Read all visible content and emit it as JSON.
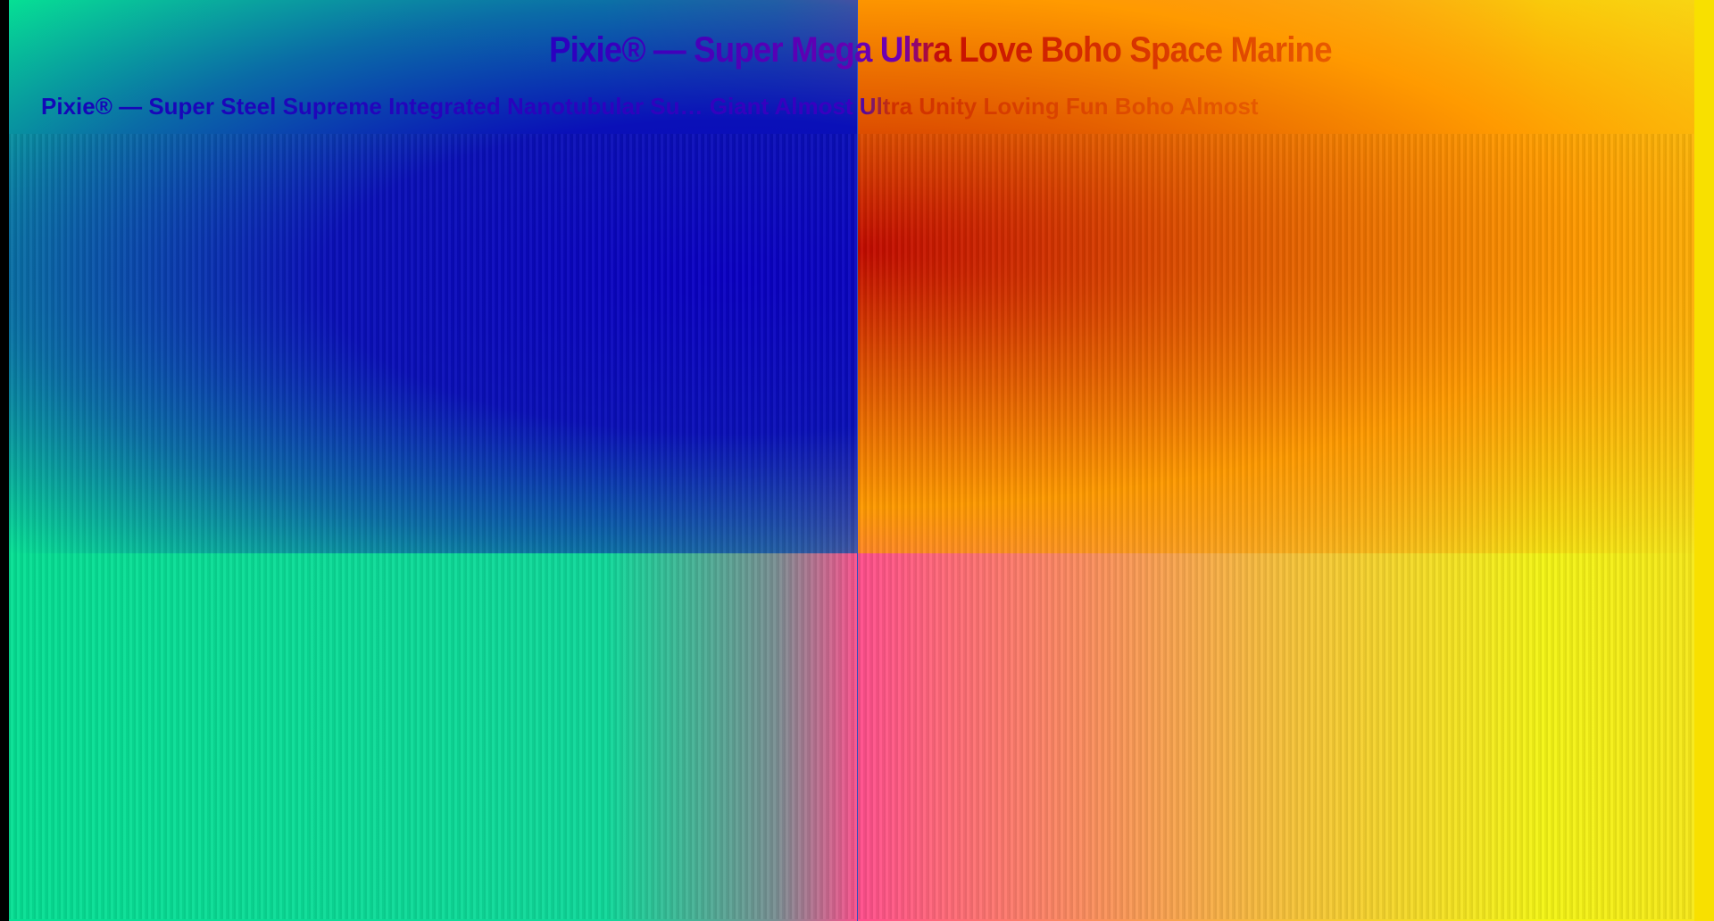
{
  "title": "Pixie® — Super Mega Ultra Love Boho Space Marine",
  "subtitle": "Pixie® — Super Steel Supreme Integrated Nanotubular Su… Giant Almost Ultra Unity Loving Fun Boho Almost",
  "colors": {
    "left_bottom": "#06e094",
    "left_top": "#0a00c4",
    "center": "#ff4f8c",
    "right_top": "#c20a00",
    "right_bottom": "#f4f515"
  }
}
